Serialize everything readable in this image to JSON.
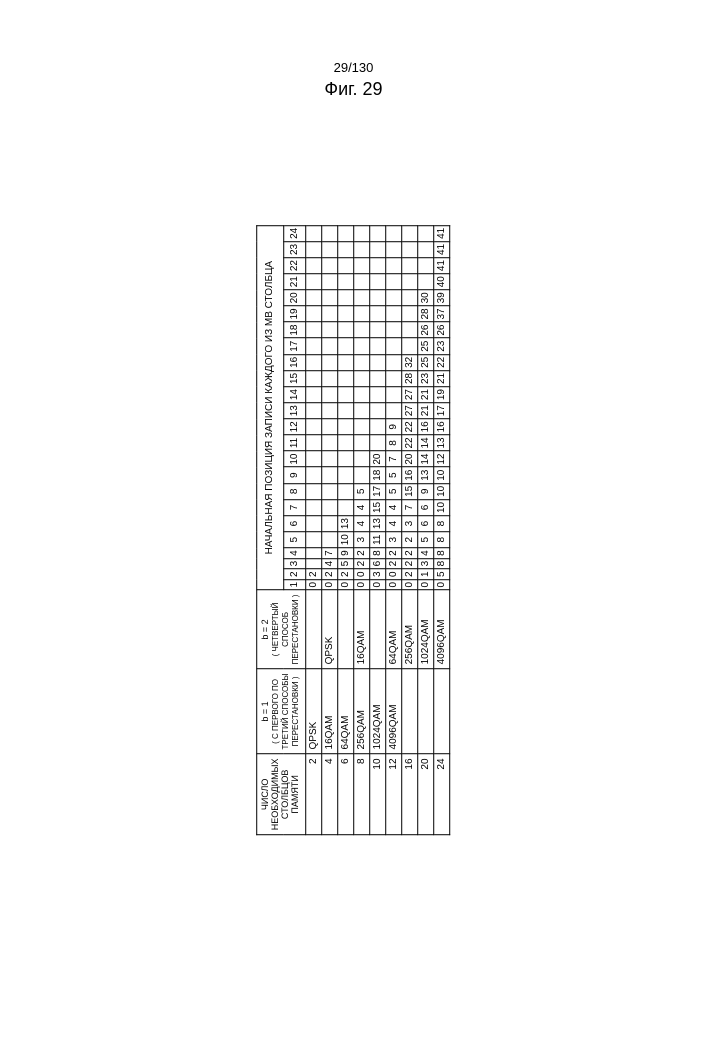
{
  "page_number": "29/130",
  "figure_title": "Фиг. 29",
  "top_header": "НАЧАЛЬНАЯ ПОЗИЦИЯ ЗАПИСИ КАЖДОГО ИЗ MB СТОЛБЦА",
  "col_header_1": "ЧИСЛО НЕОБХОДИМЫХ СТОЛБЦОВ ПАМЯТИ",
  "col_header_2_top": "b = 1",
  "col_header_2_bot": "( С ПЕРВОГО ПО ТРЕТИЙ СПОСОБЫ ПЕРЕСТАНОВКИ )",
  "col_header_3_top": "b = 2",
  "col_header_3_bot": "( ЧЕТВЕРТЫЙ СПОСОБ ПЕРЕСТАНОВКИ )",
  "col_numbers": [
    "1",
    "2",
    "3",
    "4",
    "5",
    "6",
    "7",
    "8",
    "9",
    "10",
    "11",
    "12",
    "13",
    "14",
    "15",
    "16",
    "17",
    "18",
    "19",
    "20",
    "21",
    "22",
    "23",
    "24"
  ],
  "rows": [
    {
      "n": "2",
      "m1": "QPSK",
      "m2": "",
      "v": [
        "0",
        "2",
        "",
        "",
        "",
        "",
        "",
        "",
        "",
        "",
        "",
        "",
        "",
        "",
        "",
        "",
        "",
        "",
        "",
        "",
        "",
        "",
        "",
        ""
      ]
    },
    {
      "n": "4",
      "m1": "16QAM",
      "m2": "QPSK",
      "v": [
        "0",
        "2",
        "4",
        "7",
        "",
        "",
        "",
        "",
        "",
        "",
        "",
        "",
        "",
        "",
        "",
        "",
        "",
        "",
        "",
        "",
        "",
        "",
        "",
        ""
      ]
    },
    {
      "n": "6",
      "m1": "64QAM",
      "m2": "",
      "v": [
        "0",
        "2",
        "5",
        "9",
        "10",
        "13",
        "",
        "",
        "",
        "",
        "",
        "",
        "",
        "",
        "",
        "",
        "",
        "",
        "",
        "",
        "",
        "",
        "",
        ""
      ]
    },
    {
      "n": "8",
      "m1": "256QAM",
      "m2": "16QAM",
      "v": [
        "0",
        "0",
        "2",
        "2",
        "3",
        "4",
        "4",
        "5",
        "",
        "",
        "",
        "",
        "",
        "",
        "",
        "",
        "",
        "",
        "",
        "",
        "",
        "",
        "",
        ""
      ]
    },
    {
      "n": "10",
      "m1": "1024QAM",
      "m2": "",
      "v": [
        "0",
        "3",
        "6",
        "8",
        "11",
        "13",
        "15",
        "17",
        "18",
        "20",
        "",
        "",
        "",
        "",
        "",
        "",
        "",
        "",
        "",
        "",
        "",
        "",
        "",
        ""
      ]
    },
    {
      "n": "12",
      "m1": "4096QAM",
      "m2": "64QAM",
      "v": [
        "0",
        "0",
        "2",
        "2",
        "3",
        "4",
        "4",
        "5",
        "5",
        "7",
        "8",
        "9",
        "",
        "",
        "",
        "",
        "",
        "",
        "",
        "",
        "",
        "",
        "",
        ""
      ]
    },
    {
      "n": "16",
      "m1": "",
      "m2": "256QAM",
      "v": [
        "0",
        "2",
        "2",
        "2",
        "2",
        "3",
        "7",
        "15",
        "16",
        "20",
        "22",
        "22",
        "27",
        "27",
        "28",
        "32",
        "",
        "",
        "",
        "",
        "",
        "",
        "",
        ""
      ]
    },
    {
      "n": "20",
      "m1": "",
      "m2": "1024QAM",
      "v": [
        "0",
        "1",
        "3",
        "4",
        "5",
        "6",
        "6",
        "9",
        "13",
        "14",
        "14",
        "16",
        "21",
        "21",
        "23",
        "25",
        "25",
        "26",
        "28",
        "30",
        "",
        "",
        "",
        ""
      ]
    },
    {
      "n": "24",
      "m1": "",
      "m2": "4096QAM",
      "v": [
        "0",
        "5",
        "8",
        "8",
        "8",
        "8",
        "10",
        "10",
        "10",
        "12",
        "13",
        "16",
        "17",
        "19",
        "21",
        "22",
        "23",
        "26",
        "37",
        "39",
        "40",
        "41",
        "41",
        "41"
      ]
    }
  ]
}
